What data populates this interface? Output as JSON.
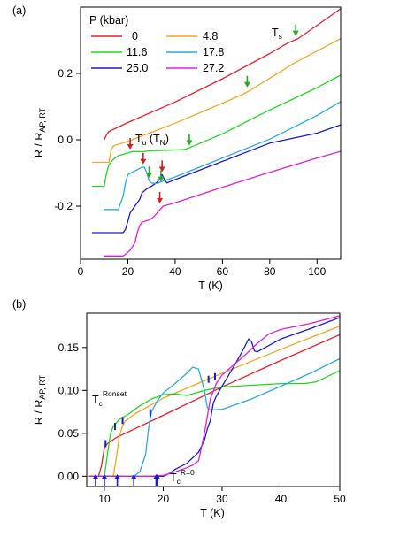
{
  "chart_data": [
    {
      "panel": "(a)",
      "type": "line",
      "xlabel": "T (K)",
      "ylabel": "R / R",
      "ylabel_sub": "AP, RT",
      "xlim": [
        0,
        110
      ],
      "ylim": [
        -0.36,
        0.4
      ],
      "xticks": [
        0,
        20,
        40,
        60,
        80,
        100
      ],
      "yticks": [
        -0.2,
        0.0,
        0.2
      ],
      "ytick_labels": [
        "-0.2",
        "0.0",
        "0.2"
      ],
      "grid": false,
      "legend_title": "P (kbar)",
      "legend_placement": "top-left",
      "series": [
        {
          "name": "0",
          "color": "#e8202a",
          "points": [
            [
              10,
              0
            ],
            [
              11,
              0.015
            ],
            [
              12,
              0.025
            ],
            [
              20,
              0.052
            ],
            [
              40,
              0.114
            ],
            [
              60,
              0.184
            ],
            [
              80,
              0.26
            ],
            [
              88,
              0.293
            ],
            [
              92,
              0.305
            ],
            [
              100,
              0.345
            ],
            [
              110,
              0.395
            ]
          ]
        },
        {
          "name": "4.8",
          "color": "#f5a623",
          "points": [
            [
              5,
              -0.068
            ],
            [
              12,
              -0.068
            ],
            [
              13,
              -0.03
            ],
            [
              14,
              -0.018
            ],
            [
              20,
              -0.005
            ],
            [
              40,
              0.05
            ],
            [
              55,
              0.095
            ],
            [
              68,
              0.135
            ],
            [
              72,
              0.15
            ],
            [
              90,
              0.23
            ],
            [
              110,
              0.305
            ]
          ]
        },
        {
          "name": "11.6",
          "color": "#22d822",
          "points": [
            [
              5,
              -0.14
            ],
            [
              10,
              -0.14
            ],
            [
              11,
              -0.1
            ],
            [
              12,
              -0.075
            ],
            [
              14,
              -0.058
            ],
            [
              16,
              -0.048
            ],
            [
              20,
              -0.04
            ],
            [
              22,
              -0.035
            ],
            [
              26,
              -0.036
            ],
            [
              30,
              -0.033
            ],
            [
              40,
              -0.031
            ],
            [
              44,
              -0.029
            ],
            [
              46,
              -0.024
            ],
            [
              48,
              -0.018
            ],
            [
              60,
              0.018
            ],
            [
              80,
              0.09
            ],
            [
              100,
              0.157
            ],
            [
              110,
              0.195
            ]
          ]
        },
        {
          "name": "25.0",
          "color": "#1a1acc",
          "points": [
            [
              5,
              -0.28
            ],
            [
              18,
              -0.28
            ],
            [
              19,
              -0.27
            ],
            [
              20,
              -0.245
            ],
            [
              21,
              -0.22
            ],
            [
              22,
              -0.21
            ],
            [
              24,
              -0.19
            ],
            [
              25,
              -0.18
            ],
            [
              26,
              -0.16
            ],
            [
              28,
              -0.148
            ],
            [
              30,
              -0.14
            ],
            [
              32,
              -0.13
            ],
            [
              33.5,
              -0.118
            ],
            [
              34.5,
              -0.105
            ],
            [
              35.5,
              -0.12
            ],
            [
              36.5,
              -0.13
            ],
            [
              40,
              -0.12
            ],
            [
              60,
              -0.065
            ],
            [
              80,
              -0.01
            ],
            [
              100,
              0.02
            ],
            [
              110,
              0.045
            ]
          ]
        },
        {
          "name": "17.8",
          "color": "#29a9e0",
          "points": [
            [
              10,
              -0.21
            ],
            [
              16,
              -0.21
            ],
            [
              17,
              -0.19
            ],
            [
              18,
              -0.17
            ],
            [
              19,
              -0.13
            ],
            [
              20,
              -0.105
            ],
            [
              22,
              -0.097
            ],
            [
              24,
              -0.09
            ],
            [
              26,
              -0.083
            ],
            [
              27,
              -0.082
            ],
            [
              28,
              -0.1
            ],
            [
              29,
              -0.124
            ],
            [
              30,
              -0.13
            ],
            [
              32,
              -0.132
            ],
            [
              40,
              -0.112
            ],
            [
              60,
              -0.055
            ],
            [
              80,
              0.002
            ],
            [
              100,
              0.073
            ],
            [
              110,
              0.115
            ]
          ]
        },
        {
          "name": "27.2",
          "color": "#e020d8",
          "points": [
            [
              10,
              -0.35
            ],
            [
              18,
              -0.35
            ],
            [
              19,
              -0.345
            ],
            [
              21,
              -0.333
            ],
            [
              23,
              -0.31
            ],
            [
              24,
              -0.28
            ],
            [
              25,
              -0.26
            ],
            [
              26,
              -0.248
            ],
            [
              27,
              -0.246
            ],
            [
              29,
              -0.242
            ],
            [
              31,
              -0.232
            ],
            [
              33,
              -0.215
            ],
            [
              35,
              -0.2
            ],
            [
              40,
              -0.19
            ],
            [
              60,
              -0.143
            ],
            [
              80,
              -0.098
            ],
            [
              100,
              -0.055
            ],
            [
              110,
              -0.035
            ]
          ]
        }
      ],
      "annotations": [
        {
          "text": "T",
          "sub": "s",
          "x": 81,
          "y": 0.355
        },
        {
          "text": "T",
          "sub": "u",
          "tail": " (T",
          "sub2": "N",
          "close": ")",
          "x": 25,
          "y": -0.03
        }
      ],
      "arrows": [
        {
          "color": "#22aa22",
          "x": 91,
          "y": 0.305
        },
        {
          "color": "#22aa22",
          "x": 70.5,
          "y": 0.15
        },
        {
          "color": "#22aa22",
          "x": 46,
          "y": -0.025
        },
        {
          "color": "#22aa22",
          "x": 29,
          "y": -0.123
        },
        {
          "color": "#22aa22",
          "x": 34,
          "y": -0.135
        },
        {
          "color": "#cc2222",
          "x": 21,
          "y": -0.037
        },
        {
          "color": "#cc2222",
          "x": 26.5,
          "y": -0.082
        },
        {
          "color": "#cc2222",
          "x": 34.5,
          "y": -0.105
        },
        {
          "color": "#cc2222",
          "x": 33.5,
          "y": -0.2
        }
      ]
    },
    {
      "panel": "(b)",
      "type": "line",
      "xlabel": "T (K)",
      "ylabel": "R / R",
      "ylabel_sub": "AP, RT",
      "xlim": [
        7,
        50
      ],
      "ylim": [
        -0.012,
        0.19
      ],
      "xticks": [
        10,
        20,
        30,
        40,
        50
      ],
      "yticks": [
        0.0,
        0.05,
        0.1,
        0.15
      ],
      "ytick_labels": [
        "0.00",
        "0.05",
        "0.10",
        "0.15"
      ],
      "grid": false,
      "series": [
        {
          "name": "0",
          "color": "#e8202a",
          "points": [
            [
              7.5,
              0
            ],
            [
              9,
              0
            ],
            [
              9.5,
              0.012
            ],
            [
              10,
              0.033
            ],
            [
              10.5,
              0.038
            ],
            [
              12,
              0.045
            ],
            [
              20,
              0.071
            ],
            [
              30,
              0.104
            ],
            [
              40,
              0.135
            ],
            [
              50,
              0.165
            ]
          ]
        },
        {
          "name": "4.8",
          "color": "#f5a623",
          "points": [
            [
              7.5,
              0
            ],
            [
              11.5,
              0
            ],
            [
              12,
              0.02
            ],
            [
              12.5,
              0.045
            ],
            [
              13,
              0.057
            ],
            [
              13.5,
              0.064
            ],
            [
              15,
              0.072
            ],
            [
              20,
              0.091
            ],
            [
              30,
              0.12
            ],
            [
              40,
              0.148
            ],
            [
              50,
              0.175
            ]
          ]
        },
        {
          "name": "11.6",
          "color": "#22d822",
          "points": [
            [
              7.5,
              0
            ],
            [
              10,
              0
            ],
            [
              10.5,
              0.025
            ],
            [
              11,
              0.048
            ],
            [
              11.5,
              0.058
            ],
            [
              12.5,
              0.066
            ],
            [
              14,
              0.072
            ],
            [
              16,
              0.082
            ],
            [
              18,
              0.09
            ],
            [
              20,
              0.095
            ],
            [
              22,
              0.096
            ],
            [
              24,
              0.094
            ],
            [
              27,
              0.1
            ],
            [
              30,
              0.104
            ],
            [
              35,
              0.106
            ],
            [
              40,
              0.108
            ],
            [
              44,
              0.108
            ],
            [
              46,
              0.11
            ],
            [
              50,
              0.123
            ]
          ]
        },
        {
          "name": "17.8",
          "color": "#29a9e0",
          "points": [
            [
              7.5,
              0
            ],
            [
              15,
              0
            ],
            [
              16,
              0.005
            ],
            [
              17,
              0.025
            ],
            [
              17.5,
              0.055
            ],
            [
              18,
              0.075
            ],
            [
              19,
              0.088
            ],
            [
              20,
              0.097
            ],
            [
              22,
              0.108
            ],
            [
              24,
              0.12
            ],
            [
              25,
              0.127
            ],
            [
              26,
              0.125
            ],
            [
              27,
              0.1
            ],
            [
              27.5,
              0.08
            ],
            [
              28,
              0.077
            ],
            [
              30,
              0.078
            ],
            [
              35,
              0.09
            ],
            [
              40,
              0.105
            ],
            [
              45,
              0.12
            ],
            [
              50,
              0.137
            ]
          ]
        },
        {
          "name": "25.0",
          "color": "#1a1acc",
          "points": [
            [
              7.5,
              0
            ],
            [
              18,
              0
            ],
            [
              20,
              0
            ],
            [
              21,
              0.003
            ],
            [
              22,
              0.008
            ],
            [
              24,
              0.015
            ],
            [
              26,
              0.028
            ],
            [
              27,
              0.042
            ],
            [
              27.5,
              0.055
            ],
            [
              28,
              0.065
            ],
            [
              28.5,
              0.085
            ],
            [
              29,
              0.093
            ],
            [
              30,
              0.105
            ],
            [
              32,
              0.128
            ],
            [
              33,
              0.14
            ],
            [
              34,
              0.153
            ],
            [
              34.5,
              0.16
            ],
            [
              35,
              0.157
            ],
            [
              35.5,
              0.146
            ],
            [
              36,
              0.145
            ],
            [
              40,
              0.16
            ],
            [
              45,
              0.172
            ],
            [
              50,
              0.185
            ]
          ]
        },
        {
          "name": "27.2",
          "color": "#e020d8",
          "points": [
            [
              7.5,
              0
            ],
            [
              18,
              0
            ],
            [
              20,
              0.001
            ],
            [
              22,
              0.005
            ],
            [
              24,
              0.01
            ],
            [
              25,
              0.013
            ],
            [
              26,
              0.018
            ],
            [
              27,
              0.05
            ],
            [
              28,
              0.09
            ],
            [
              29,
              0.108
            ],
            [
              30,
              0.118
            ],
            [
              32,
              0.13
            ],
            [
              34,
              0.142
            ],
            [
              36,
              0.155
            ],
            [
              38,
              0.166
            ],
            [
              40,
              0.171
            ],
            [
              45,
              0.178
            ],
            [
              50,
              0.187
            ]
          ]
        }
      ],
      "annotations": [
        {
          "text": "T",
          "sub": "c",
          "sup": "Ronset",
          "x": 8.5,
          "y": 0.088
        },
        {
          "text": "T",
          "sub": "c",
          "sup": "R=0",
          "x": 23.8,
          "y": -0.012
        }
      ],
      "onset_marks": [
        {
          "x": 10.2,
          "y": 0.038
        },
        {
          "x": 11.8,
          "y": 0.058
        },
        {
          "x": 13.1,
          "y": 0.065
        },
        {
          "x": 17.8,
          "y": 0.074
        },
        {
          "x": 27.7,
          "y": 0.113
        },
        {
          "x": 28.8,
          "y": 0.116
        }
      ],
      "zero_arrows": [
        8.5,
        10.0,
        12.2,
        15.0,
        18.8,
        19.0
      ]
    }
  ]
}
